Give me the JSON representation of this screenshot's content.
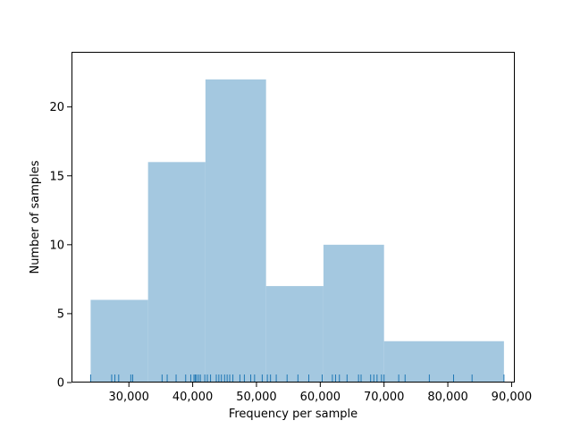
{
  "colors": {
    "bar_fill": "#a4c8e0",
    "rug": "#1f77b4",
    "axis": "#000000",
    "background": "#ffffff"
  },
  "chart_data": {
    "type": "bar",
    "subtype": "histogram_with_rug",
    "title": "",
    "xlabel": "Frequency per sample",
    "ylabel": "Number of samples",
    "grid": false,
    "legend": "none",
    "xlim": [
      21000,
      90500
    ],
    "ylim": [
      0,
      24
    ],
    "xticks": [
      30000,
      40000,
      50000,
      60000,
      70000,
      80000,
      90000
    ],
    "xtick_labels": [
      "30,000",
      "40,000",
      "50,000",
      "60,000",
      "70,000",
      "80,000",
      "90,000"
    ],
    "yticks": [
      0,
      5,
      10,
      15,
      20
    ],
    "ytick_labels": [
      "0",
      "5",
      "10",
      "15",
      "20"
    ],
    "bins": [
      {
        "x0": 24000,
        "x1": 33000,
        "count": 6
      },
      {
        "x0": 33000,
        "x1": 42000,
        "count": 16
      },
      {
        "x0": 42000,
        "x1": 51500,
        "count": 22
      },
      {
        "x0": 51500,
        "x1": 60500,
        "count": 7
      },
      {
        "x0": 60500,
        "x1": 70000,
        "count": 10
      },
      {
        "x0": 70000,
        "x1": 88800,
        "count": 3
      }
    ],
    "rug": [
      24000,
      27300,
      27800,
      28400,
      30300,
      30600,
      35200,
      36000,
      37400,
      38900,
      39700,
      40200,
      40400,
      40600,
      40900,
      41200,
      41900,
      42300,
      42800,
      43700,
      44100,
      44500,
      45000,
      45400,
      45800,
      46300,
      47400,
      48100,
      49100,
      49700,
      50900,
      51700,
      52200,
      53100,
      54800,
      56500,
      58200,
      60300,
      61900,
      62400,
      63000,
      64200,
      66000,
      66400,
      67900,
      68400,
      68900,
      69600,
      70000,
      72300,
      73300,
      77100,
      80900,
      83800,
      88800
    ]
  }
}
